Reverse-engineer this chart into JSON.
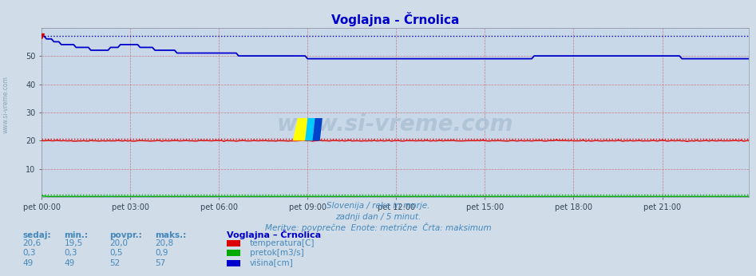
{
  "title": "Voglajna - Črnolica",
  "title_color": "#0000cc",
  "fig_bg_color": "#d0dce8",
  "plot_bg_color": "#c8d8e8",
  "ylabel": "",
  "xlabel": "",
  "ylim": [
    0,
    60
  ],
  "xlim": [
    0,
    287
  ],
  "xtick_positions": [
    0,
    36,
    72,
    108,
    144,
    180,
    216,
    252
  ],
  "xtick_labels": [
    "pet 00:00",
    "pet 03:00",
    "pet 06:00",
    "pet 09:00",
    "pet 12:00",
    "pet 15:00",
    "pet 18:00",
    "pet 21:00"
  ],
  "ytick_positions": [
    10,
    20,
    30,
    40,
    50
  ],
  "ytick_labels": [
    "10",
    "20",
    "30",
    "40",
    "50"
  ],
  "grid_h_color": "#cc4444",
  "grid_v_color": "#cc4444",
  "temp_color": "#dd0000",
  "flow_color": "#00aa00",
  "height_color": "#0000cc",
  "temp_max_dotted": 20.8,
  "flow_max_dotted": 0.9,
  "height_max_dotted": 57.0,
  "watermark": "www.si-vreme.com",
  "watermark_color": "#b0c4d8",
  "subtitle1": "Slovenija / reke in morje.",
  "subtitle2": "zadnji dan / 5 minut.",
  "subtitle3": "Meritve: povprečne  Enote: metrične  Črta: maksimum",
  "subtitle_color": "#4488bb",
  "legend_title": "Voglajna – Črnolica",
  "legend_title_color": "#0000cc",
  "legend_items": [
    "temperatura[C]",
    "pretok[m3/s]",
    "višina[cm]"
  ],
  "legend_colors": [
    "#dd0000",
    "#00aa00",
    "#0000cc"
  ],
  "table_headers": [
    "sedaj:",
    "min.:",
    "povpr.:",
    "maks.:"
  ],
  "table_values": [
    [
      "20,6",
      "19,5",
      "20,0",
      "20,8"
    ],
    [
      "0,3",
      "0,3",
      "0,5",
      "0,9"
    ],
    [
      "49",
      "49",
      "52",
      "57"
    ]
  ],
  "table_color": "#4488bb",
  "side_label": "www.si-vreme.com",
  "side_label_color": "#7799aa"
}
